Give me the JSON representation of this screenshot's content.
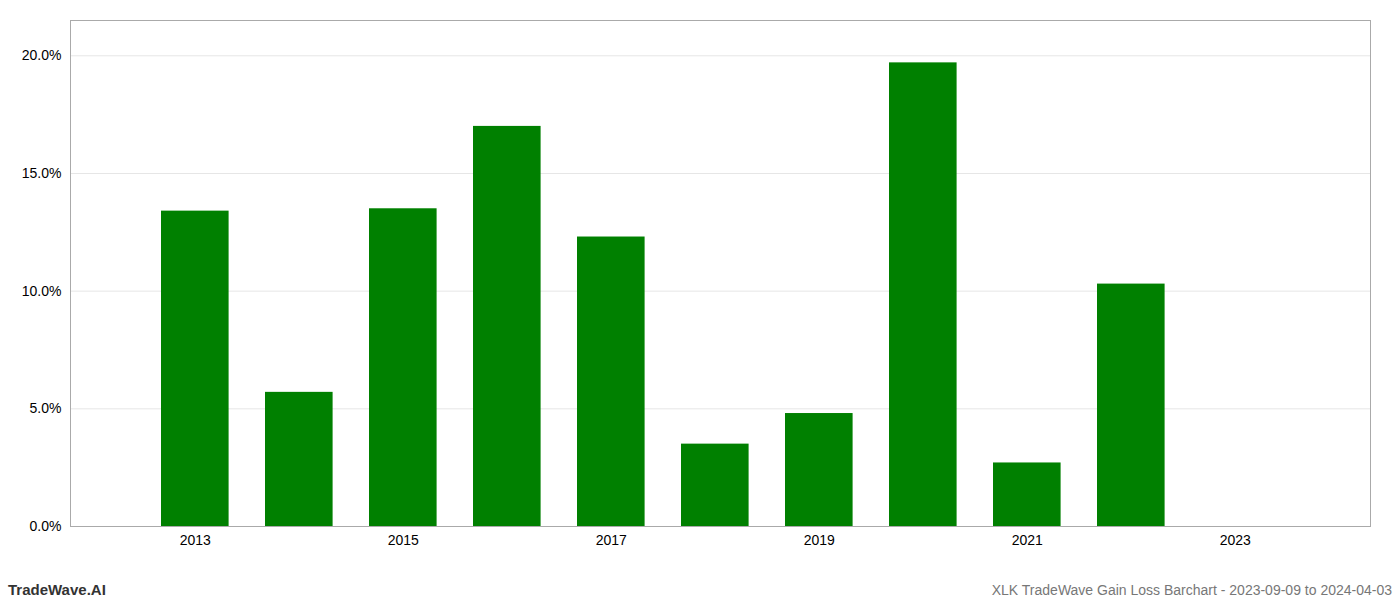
{
  "chart_data": {
    "type": "bar",
    "x": [
      2013,
      2014,
      2015,
      2016,
      2017,
      2018,
      2019,
      2020,
      2021,
      2022,
      2023
    ],
    "values": [
      0.134,
      0.057,
      0.135,
      0.17,
      0.123,
      0.035,
      0.048,
      0.197,
      0.027,
      0.103,
      0.0
    ],
    "color": "#008000",
    "xlim": [
      2011.8,
      2024.3
    ],
    "xticks": [
      2013,
      2015,
      2017,
      2019,
      2021,
      2023
    ],
    "ylim": [
      0.0,
      0.215
    ],
    "yticks": [
      {
        "value": 0.0,
        "label": "0.0%"
      },
      {
        "value": 0.05,
        "label": "5.0%"
      },
      {
        "value": 0.1,
        "label": "10.0%"
      },
      {
        "value": 0.15,
        "label": "15.0%"
      },
      {
        "value": 0.2,
        "label": "20.0%"
      }
    ],
    "grid": true,
    "annotations": [
      "TradeWave.AI",
      "XLK TradeWave Gain Loss Barchart - 2023-09-09 to 2024-04-03"
    ]
  }
}
